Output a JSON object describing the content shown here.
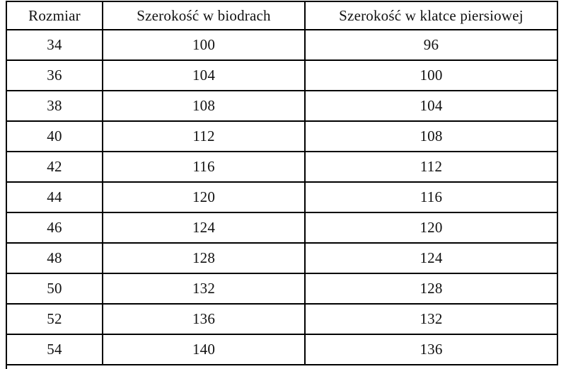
{
  "table": {
    "headers": [
      "Rozmiar",
      "Szerokość w biodrach",
      "Szerokość w klatce piersiowej"
    ],
    "rows": [
      [
        "34",
        "100",
        "96"
      ],
      [
        "36",
        "104",
        "100"
      ],
      [
        "38",
        "108",
        "104"
      ],
      [
        "40",
        "112",
        "108"
      ],
      [
        "42",
        "116",
        "112"
      ],
      [
        "44",
        "120",
        "116"
      ],
      [
        "46",
        "124",
        "120"
      ],
      [
        "48",
        "128",
        "124"
      ],
      [
        "50",
        "132",
        "128"
      ],
      [
        "52",
        "136",
        "132"
      ],
      [
        "54",
        "140",
        "136"
      ]
    ],
    "border_color": "#000000",
    "background_color": "#ffffff",
    "text_color": "#111111"
  },
  "chart_data": {
    "type": "table",
    "columns": [
      "Rozmiar",
      "Szerokość w biodrach",
      "Szerokość w klatce piersiowej"
    ],
    "rows": [
      [
        34,
        100,
        96
      ],
      [
        36,
        104,
        100
      ],
      [
        38,
        108,
        104
      ],
      [
        40,
        112,
        108
      ],
      [
        42,
        116,
        112
      ],
      [
        44,
        120,
        116
      ],
      [
        46,
        124,
        120
      ],
      [
        48,
        128,
        124
      ],
      [
        50,
        132,
        128
      ],
      [
        52,
        136,
        132
      ],
      [
        54,
        140,
        136
      ]
    ]
  }
}
